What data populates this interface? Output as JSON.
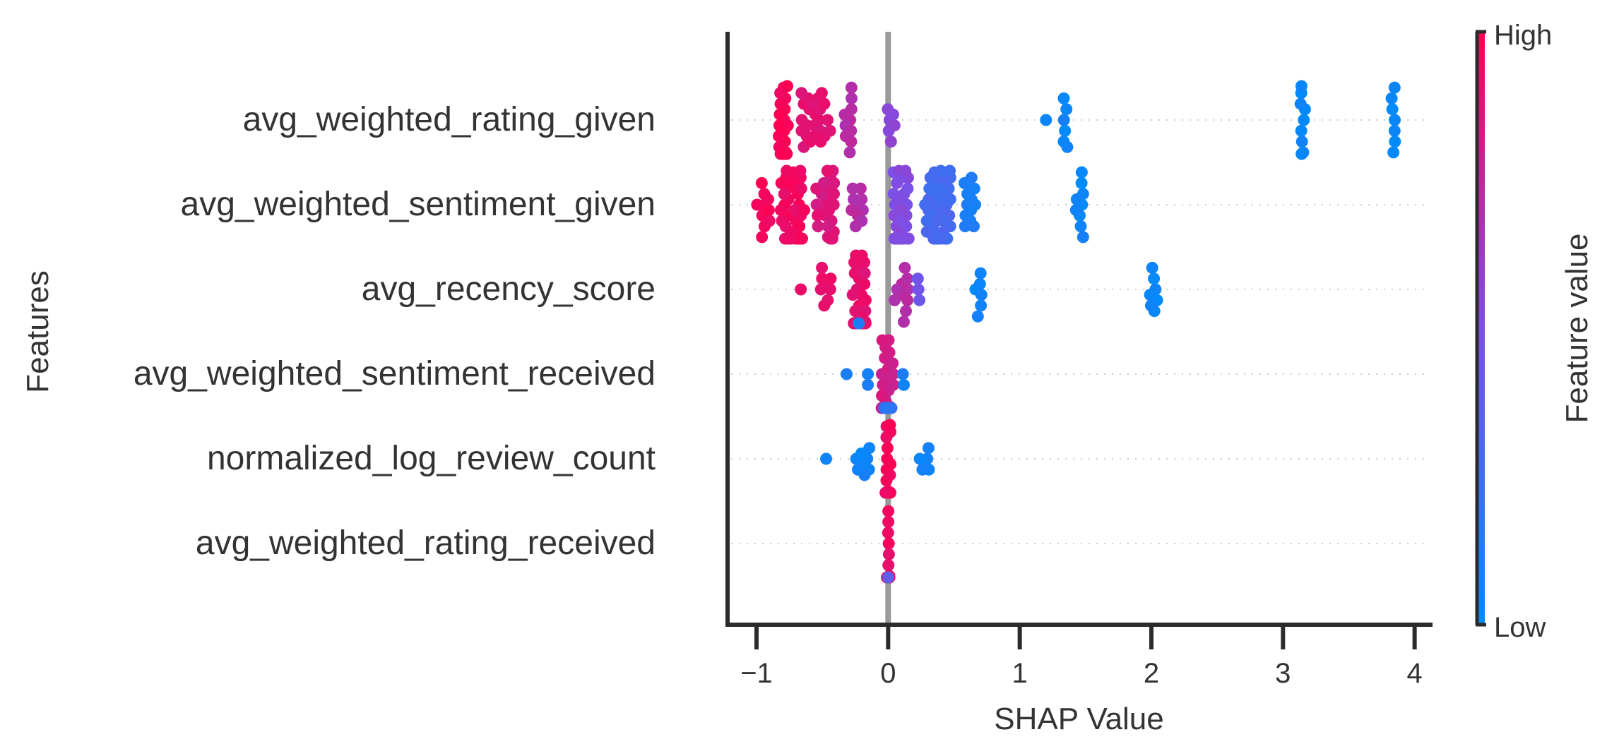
{
  "chart_data": {
    "type": "scatter",
    "subtype": "shap-beeswarm",
    "xlabel": "SHAP Value",
    "ylabel": "Features",
    "xlim": [
      -1.22,
      4.12
    ],
    "xticks": [
      -1,
      0,
      1,
      2,
      3,
      4
    ],
    "xtick_labels": [
      "−1",
      "0",
      "1",
      "2",
      "3",
      "4"
    ],
    "zero_line": 0,
    "grid": "dotted horizontal per feature",
    "colorbar": {
      "title": "Feature value",
      "high_label": "High",
      "low_label": "Low",
      "low_color": "#008bfb",
      "mid_color": "#7d4fe6",
      "high_color": "#ff0052"
    },
    "features": [
      {
        "name": "avg_weighted_rating_given",
        "clusters": [
          {
            "x": -0.8,
            "spread": 0.04,
            "n": 36,
            "f": 0.98
          },
          {
            "x": -0.55,
            "spread": 0.11,
            "n": 24,
            "f": 0.88
          },
          {
            "x": -0.3,
            "spread": 0.06,
            "n": 10,
            "f": 0.72
          },
          {
            "x": 0.02,
            "spread": 0.03,
            "n": 6,
            "f": 0.55
          },
          {
            "x": 1.2,
            "spread": 0.01,
            "n": 1,
            "f": 0.05
          },
          {
            "x": 1.35,
            "spread": 0.02,
            "n": 6,
            "f": 0.05
          },
          {
            "x": 3.15,
            "spread": 0.02,
            "n": 10,
            "f": 0.03
          },
          {
            "x": 3.84,
            "spread": 0.02,
            "n": 7,
            "f": 0.03
          }
        ]
      },
      {
        "name": "avg_weighted_sentiment_given",
        "clusters": [
          {
            "x": -0.95,
            "spread": 0.05,
            "n": 10,
            "f": 0.97
          },
          {
            "x": -0.72,
            "spread": 0.1,
            "n": 40,
            "f": 0.94
          },
          {
            "x": -0.48,
            "spread": 0.07,
            "n": 24,
            "f": 0.86
          },
          {
            "x": -0.22,
            "spread": 0.06,
            "n": 10,
            "f": 0.72
          },
          {
            "x": 0.1,
            "spread": 0.06,
            "n": 34,
            "f": 0.52
          },
          {
            "x": 0.38,
            "spread": 0.1,
            "n": 40,
            "f": 0.28
          },
          {
            "x": 0.62,
            "spread": 0.05,
            "n": 12,
            "f": 0.1
          },
          {
            "x": 1.45,
            "spread": 0.04,
            "n": 9,
            "f": 0.04
          }
        ]
      },
      {
        "name": "avg_recency_score",
        "clusters": [
          {
            "x": -0.65,
            "spread": 0.02,
            "n": 1,
            "f": 0.95
          },
          {
            "x": -0.48,
            "spread": 0.05,
            "n": 8,
            "f": 0.92
          },
          {
            "x": -0.22,
            "spread": 0.05,
            "n": 40,
            "f": 0.9
          },
          {
            "x": -0.23,
            "spread": 0.01,
            "n": 1,
            "f": 0.15
          },
          {
            "x": 0.1,
            "spread": 0.06,
            "n": 10,
            "f": 0.72
          },
          {
            "x": 0.22,
            "spread": 0.02,
            "n": 3,
            "f": 0.45
          },
          {
            "x": 0.68,
            "spread": 0.03,
            "n": 6,
            "f": 0.05
          },
          {
            "x": 2.02,
            "spread": 0.03,
            "n": 7,
            "f": 0.04
          }
        ]
      },
      {
        "name": "avg_weighted_sentiment_received",
        "clusters": [
          {
            "x": -0.3,
            "spread": 0.02,
            "n": 1,
            "f": 0.1
          },
          {
            "x": -0.15,
            "spread": 0.02,
            "n": 2,
            "f": 0.1
          },
          {
            "x": 0.0,
            "spread": 0.05,
            "n": 34,
            "f": 0.82
          },
          {
            "x": 0.0,
            "spread": 0.03,
            "n": 10,
            "f": 0.2
          },
          {
            "x": 0.12,
            "spread": 0.02,
            "n": 2,
            "f": 0.08
          }
        ]
      },
      {
        "name": "normalized_log_review_count",
        "clusters": [
          {
            "x": -0.47,
            "spread": 0.01,
            "n": 1,
            "f": 0.05
          },
          {
            "x": -0.2,
            "spread": 0.06,
            "n": 8,
            "f": 0.06
          },
          {
            "x": 0.0,
            "spread": 0.02,
            "n": 34,
            "f": 0.97
          },
          {
            "x": 0.25,
            "spread": 0.06,
            "n": 5,
            "f": 0.05
          }
        ]
      },
      {
        "name": "avg_weighted_rating_received",
        "clusters": [
          {
            "x": 0.0,
            "spread": 0.01,
            "n": 30,
            "f": 0.95
          },
          {
            "x": 0.0,
            "spread": 0.0,
            "n": 1,
            "f": 0.35
          }
        ]
      }
    ]
  }
}
